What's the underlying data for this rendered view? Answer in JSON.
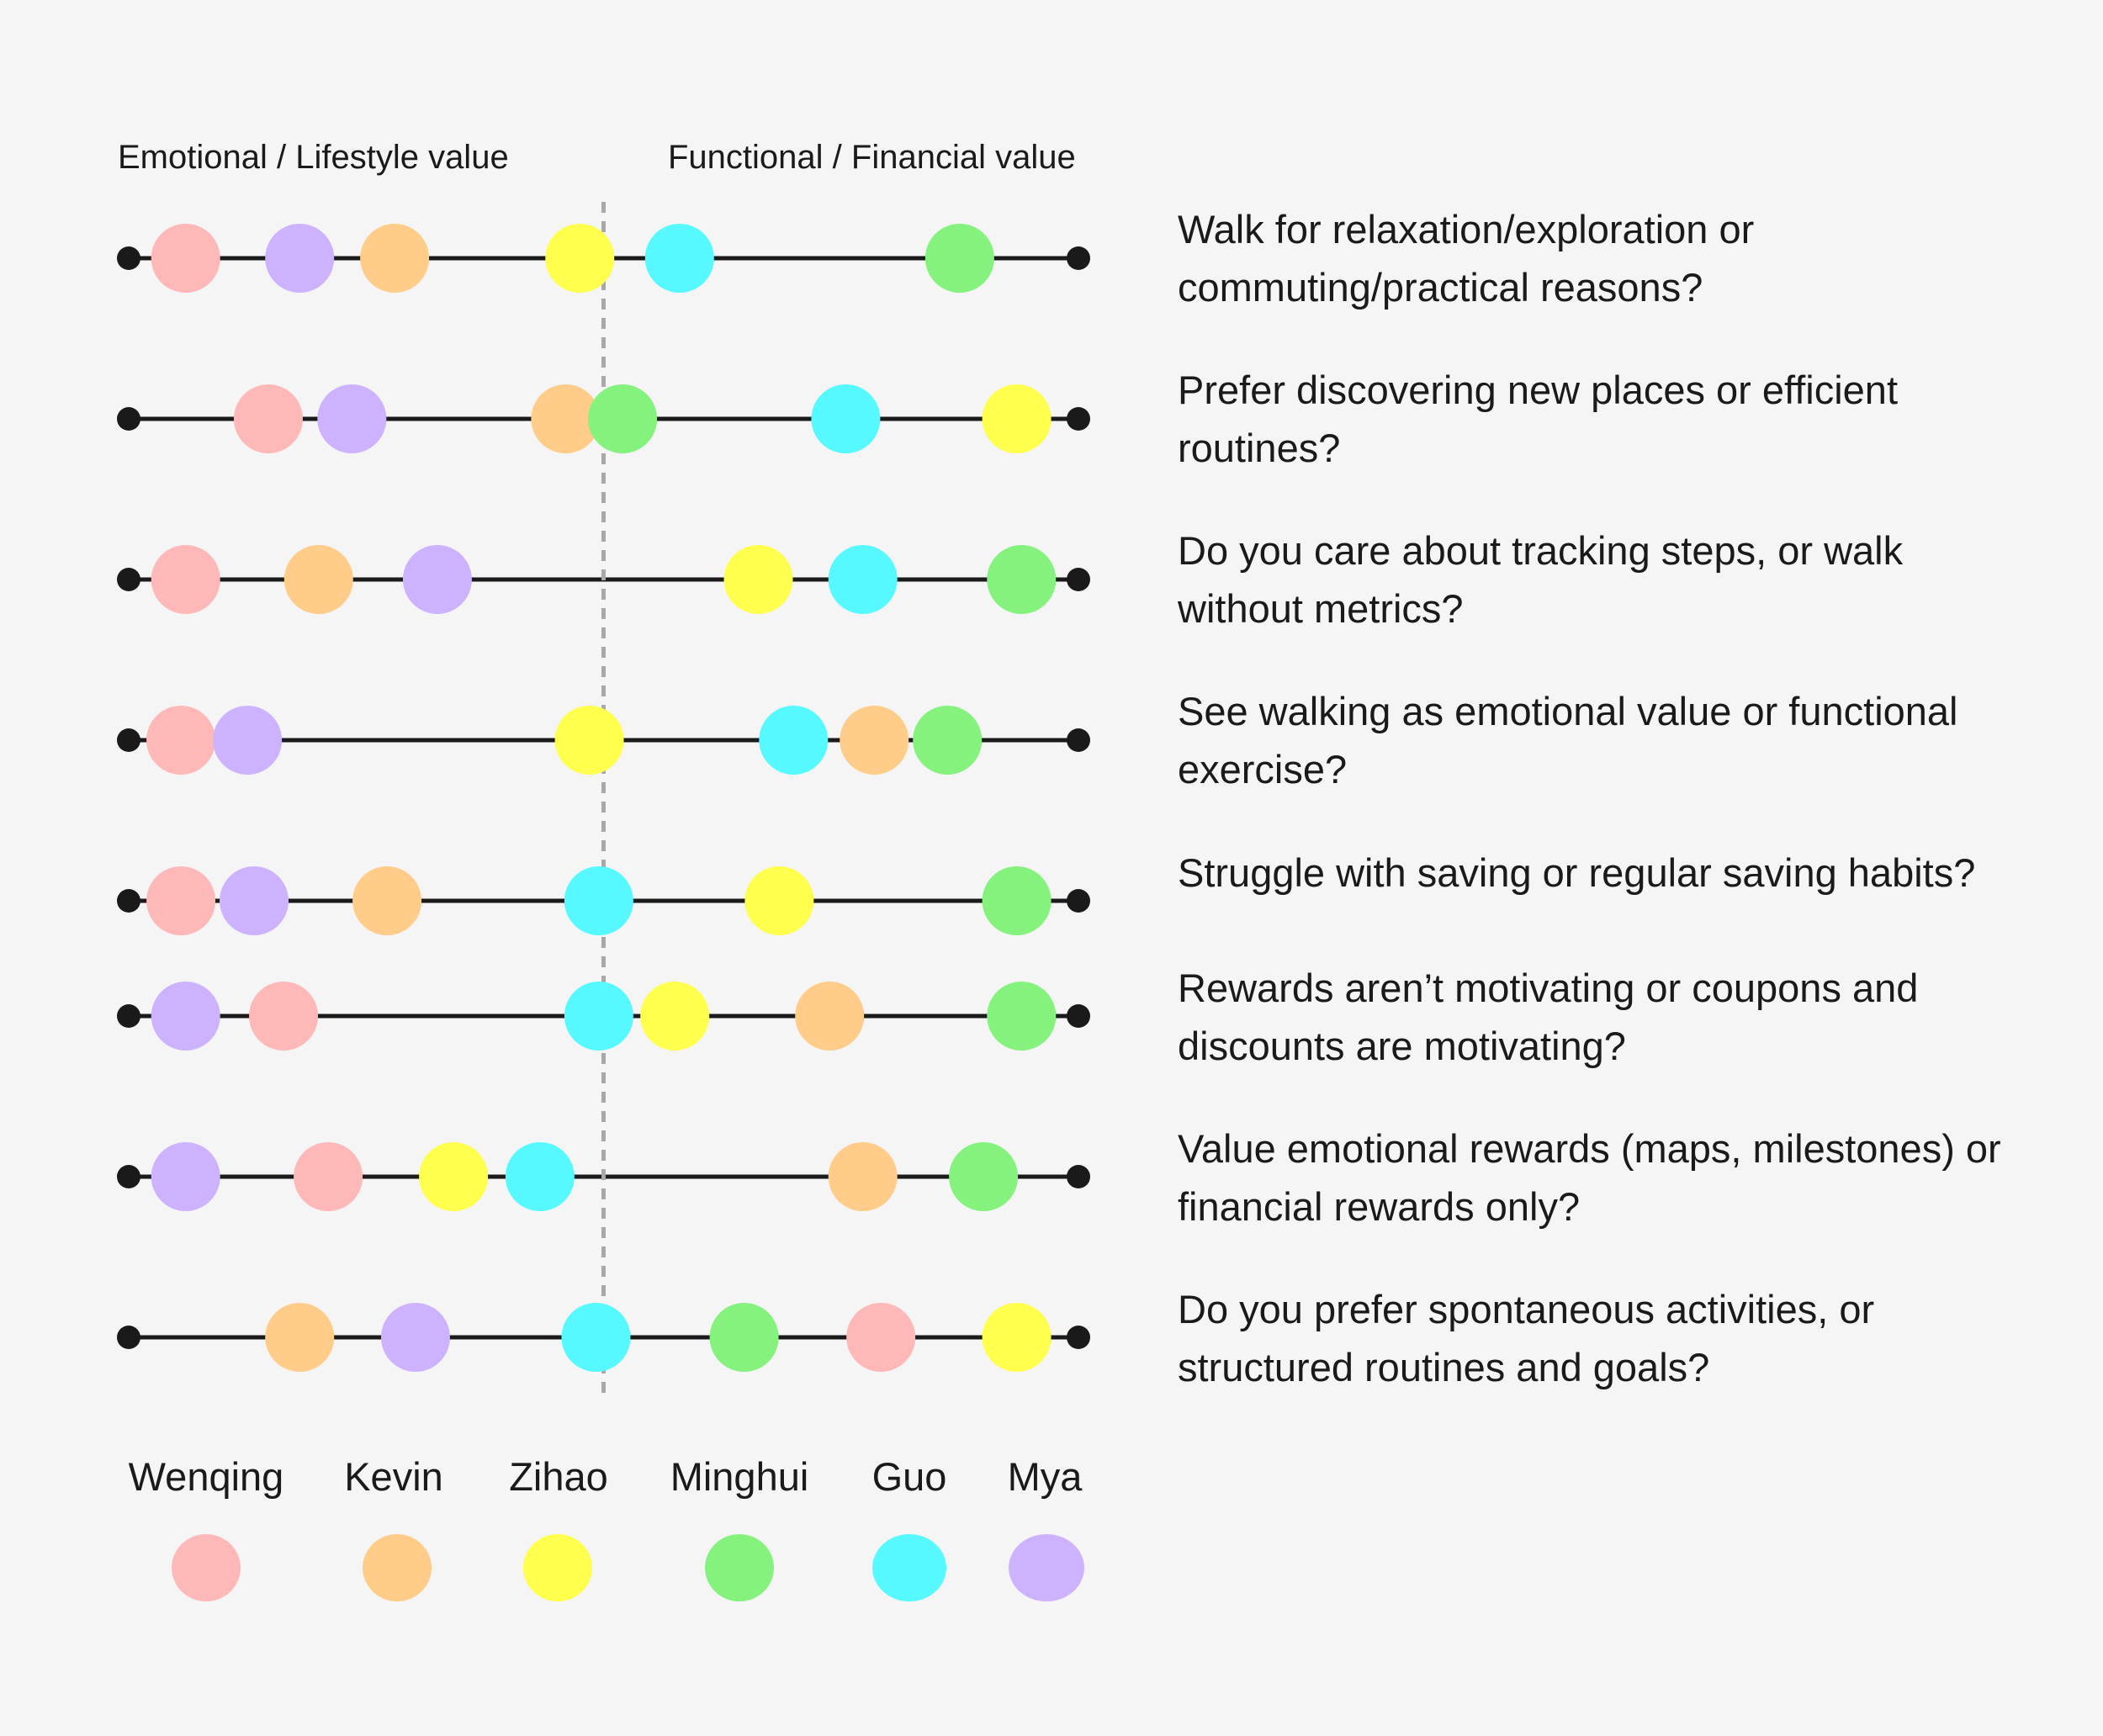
{
  "header": {
    "left_label": "Emotional / Lifestyle value",
    "right_label": "Functional / Financial value"
  },
  "people": [
    {
      "key": "wenqing",
      "name": "Wenqing",
      "color": "#ffb8b8"
    },
    {
      "key": "kevin",
      "name": "Kevin",
      "color": "#ffcc8a"
    },
    {
      "key": "zihao",
      "name": "Zihao",
      "color": "#ffff4d"
    },
    {
      "key": "minghui",
      "name": "Minghui",
      "color": "#85f27e"
    },
    {
      "key": "guo",
      "name": "Guo",
      "color": "#55f9ff"
    },
    {
      "key": "mya",
      "name": "Mya",
      "color": "#cdb3ff"
    }
  ],
  "chart_data": {
    "type": "scatter",
    "x_range": [
      0,
      1
    ],
    "midpoint": 0.5,
    "rows": [
      {
        "question": "Walk for relaxation/exploration or commuting/practical reasons?",
        "positions": {
          "wenqing": 0.06,
          "mya": 0.18,
          "kevin": 0.28,
          "zihao": 0.475,
          "guo": 0.58,
          "minghui": 0.875
        }
      },
      {
        "question": "Prefer discovering new places or efficient routines?",
        "positions": {
          "wenqing": 0.147,
          "mya": 0.235,
          "kevin": 0.46,
          "minghui": 0.52,
          "guo": 0.755,
          "zihao": 0.935
        }
      },
      {
        "question": "Do you care about tracking steps, or walk without metrics?",
        "positions": {
          "wenqing": 0.06,
          "kevin": 0.2,
          "mya": 0.325,
          "zihao": 0.663,
          "guo": 0.773,
          "minghui": 0.94
        }
      },
      {
        "question": "See walking as emotional value or functional exercise?",
        "positions": {
          "wenqing": 0.055,
          "mya": 0.125,
          "zihao": 0.485,
          "guo": 0.7,
          "kevin": 0.785,
          "minghui": 0.862
        }
      },
      {
        "question": "Struggle with saving or regular saving habits?",
        "positions": {
          "wenqing": 0.055,
          "mya": 0.132,
          "kevin": 0.272,
          "guo": 0.495,
          "zihao": 0.685,
          "minghui": 0.935
        }
      },
      {
        "question": "Rewards aren’t motivating or coupons and discounts are motivating?",
        "positions": {
          "mya": 0.06,
          "wenqing": 0.163,
          "guo": 0.495,
          "zihao": 0.575,
          "kevin": 0.738,
          "minghui": 0.94
        }
      },
      {
        "question": "Value emotional rewards (maps, milestones) or financial rewards only?",
        "positions": {
          "mya": 0.06,
          "wenqing": 0.21,
          "zihao": 0.342,
          "guo": 0.433,
          "kevin": 0.773,
          "minghui": 0.9
        }
      },
      {
        "question": "Do you prefer spontaneous activities, or structured routines and goals?",
        "positions": {
          "kevin": 0.18,
          "mya": 0.302,
          "guo": 0.492,
          "minghui": 0.648,
          "wenqing": 0.792,
          "zihao": 0.935
        }
      }
    ]
  }
}
